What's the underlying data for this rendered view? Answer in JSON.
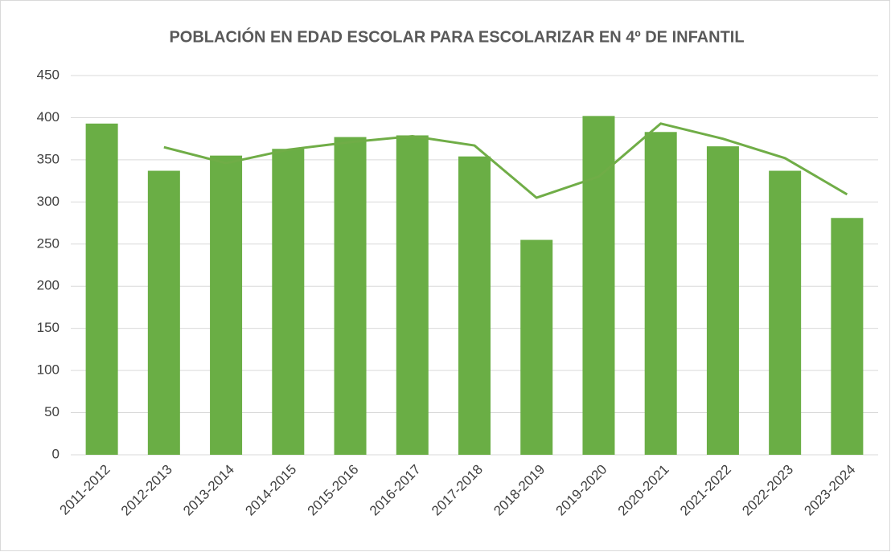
{
  "chart_data": {
    "type": "bar",
    "title": "POBLACIÓN EN EDAD ESCOLAR PARA ESCOLARIZAR EN 4º DE INFANTIL",
    "categories": [
      "2011-2012",
      "2012-2013",
      "2013-2014",
      "2014-2015",
      "2015-2016",
      "2016-2017",
      "2017-2018",
      "2018-2019",
      "2019-2020",
      "2020-2021",
      "2021-2022",
      "2022-2023",
      "2023-2024"
    ],
    "series": [
      {
        "type": "bar",
        "color": "#6aae45",
        "values": [
          393,
          337,
          355,
          363,
          377,
          379,
          354,
          255,
          402,
          383,
          366,
          337,
          281
        ]
      },
      {
        "type": "line",
        "color": "#70ad47",
        "values": [
          null,
          365,
          346,
          362,
          371,
          378,
          367,
          305,
          330,
          393,
          375,
          352,
          309
        ]
      }
    ],
    "ylim": [
      0,
      450
    ],
    "yticks": [
      0,
      50,
      100,
      150,
      200,
      250,
      300,
      350,
      400,
      450
    ],
    "grid": true
  }
}
